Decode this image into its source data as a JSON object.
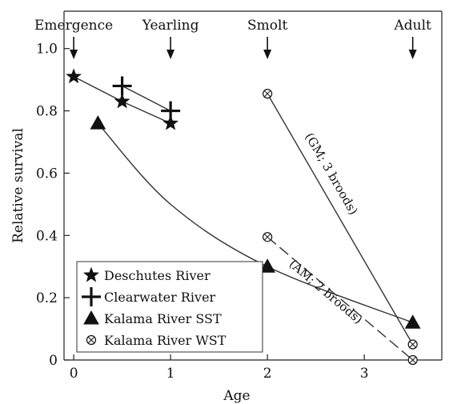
{
  "chart_data": {
    "type": "line",
    "title": "",
    "xlabel": "Age",
    "ylabel": "Relative survival",
    "xlim": [
      -0.1,
      3.8
    ],
    "ylim": [
      0,
      1.12
    ],
    "x_ticks": [
      0,
      1,
      2,
      3
    ],
    "y_ticks": [
      0,
      0.2,
      0.4,
      0.6,
      0.8,
      1.0
    ],
    "y_tick_labels": [
      "0",
      "0.2",
      "0.4",
      "0.6",
      "0.8",
      "1.0"
    ],
    "grid": false,
    "legend_position": "bottom-left",
    "stages": [
      {
        "label": "Emergence",
        "x": 0
      },
      {
        "label": "Yearling",
        "x": 1
      },
      {
        "label": "Smolt",
        "x": 2
      },
      {
        "label": "Adult",
        "x": 3.5
      }
    ],
    "series": [
      {
        "name": "Deschutes River",
        "marker": "star",
        "x": [
          0,
          0.5,
          1
        ],
        "y": [
          0.91,
          0.83,
          0.76
        ],
        "style": "solid"
      },
      {
        "name": "Clearwater River",
        "marker": "cross",
        "x": [
          0.5,
          1
        ],
        "y": [
          0.88,
          0.8
        ],
        "style": "solid"
      },
      {
        "name": "Kalama River SST",
        "marker": "triangle",
        "x": [
          0.25,
          1,
          2,
          3.5
        ],
        "y": [
          0.76,
          0.5,
          0.3,
          0.12
        ],
        "markers_at": [
          0,
          2,
          3
        ],
        "style": "curve"
      },
      {
        "name": "Kalama River WST",
        "marker": "circle-x",
        "lines": [
          {
            "note": "(GM; 3 broods)",
            "x": [
              2,
              3.5
            ],
            "y": [
              0.855,
              0.05
            ],
            "style": "solid"
          },
          {
            "note": "(AM; 2 broods)",
            "x": [
              2,
              3.5
            ],
            "y": [
              0.395,
              0
            ],
            "style": "dashed"
          }
        ]
      }
    ]
  }
}
